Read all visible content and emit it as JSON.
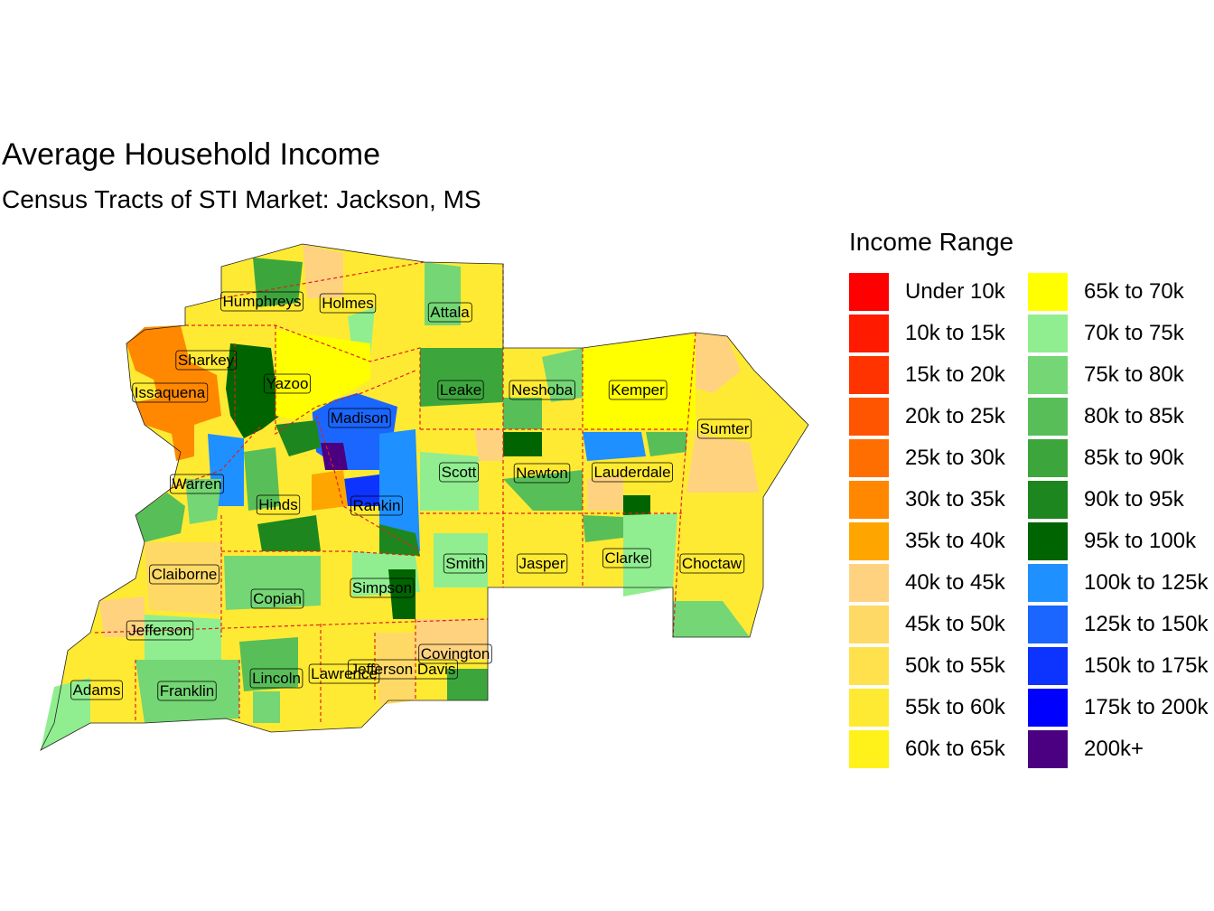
{
  "title": "Average Household Income",
  "subtitle": "Census Tracts of STI Market: Jackson, MS",
  "legend": {
    "title": "Income Range",
    "items": [
      {
        "label": "Under 10k",
        "color": "#FF0000"
      },
      {
        "label": "10k to 15k",
        "color": "#FF1A00"
      },
      {
        "label": "15k to 20k",
        "color": "#FF3300"
      },
      {
        "label": "20k to 25k",
        "color": "#FF5500"
      },
      {
        "label": "25k to 30k",
        "color": "#FF6E00"
      },
      {
        "label": "30k to 35k",
        "color": "#FF8800"
      },
      {
        "label": "35k to 40k",
        "color": "#FFA500"
      },
      {
        "label": "40k to 45k",
        "color": "#FFD27F"
      },
      {
        "label": "45k to 50k",
        "color": "#FFD966"
      },
      {
        "label": "50k to 55k",
        "color": "#FFE14D"
      },
      {
        "label": "55k to 60k",
        "color": "#FFEA33"
      },
      {
        "label": "60k to 65k",
        "color": "#FFF21A"
      },
      {
        "label": "65k to 70k",
        "color": "#FFFF00"
      },
      {
        "label": "70k to 75k",
        "color": "#90EE90"
      },
      {
        "label": "75k to 80k",
        "color": "#74D674"
      },
      {
        "label": "80k to 85k",
        "color": "#58BE58"
      },
      {
        "label": "85k to 90k",
        "color": "#3CA63C"
      },
      {
        "label": "90k to 95k",
        "color": "#1E861E"
      },
      {
        "label": "95k to 100k",
        "color": "#006400"
      },
      {
        "label": "100k to 125k",
        "color": "#1E90FF"
      },
      {
        "label": "125k to 150k",
        "color": "#1A66FF"
      },
      {
        "label": "150k to 175k",
        "color": "#0D33FF"
      },
      {
        "label": "175k to 200k",
        "color": "#0000FF"
      },
      {
        "label": "200k+",
        "color": "#4B0082"
      }
    ]
  },
  "counties": [
    {
      "name": "Humphreys"
    },
    {
      "name": "Holmes"
    },
    {
      "name": "Attala"
    },
    {
      "name": "Sharkey"
    },
    {
      "name": "Issaquena"
    },
    {
      "name": "Yazoo"
    },
    {
      "name": "Leake"
    },
    {
      "name": "Neshoba"
    },
    {
      "name": "Kemper"
    },
    {
      "name": "Madison"
    },
    {
      "name": "Sumter"
    },
    {
      "name": "Scott"
    },
    {
      "name": "Newton"
    },
    {
      "name": "Lauderdale"
    },
    {
      "name": "Warren"
    },
    {
      "name": "Hinds"
    },
    {
      "name": "Rankin"
    },
    {
      "name": "Smith"
    },
    {
      "name": "Jasper"
    },
    {
      "name": "Clarke"
    },
    {
      "name": "Choctaw"
    },
    {
      "name": "Claiborne"
    },
    {
      "name": "Copiah"
    },
    {
      "name": "Simpson"
    },
    {
      "name": "Jefferson"
    },
    {
      "name": "Covington"
    },
    {
      "name": "Jefferson Davis"
    },
    {
      "name": "Lawrence"
    },
    {
      "name": "Lincoln"
    },
    {
      "name": "Adams"
    },
    {
      "name": "Franklin"
    }
  ]
}
